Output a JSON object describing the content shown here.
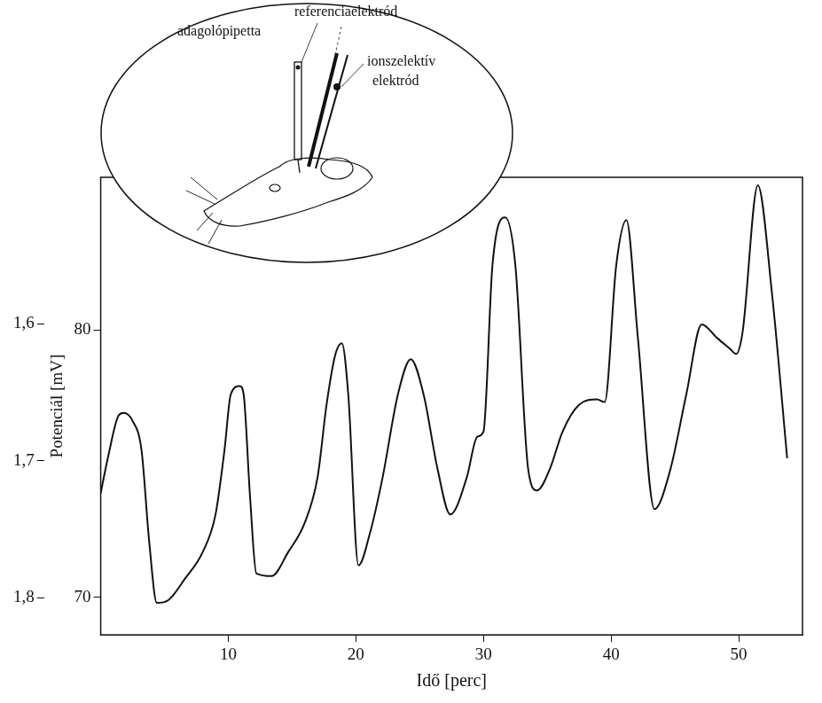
{
  "chart_data": {
    "type": "line",
    "x_label": "Idő [perc]",
    "y_label": "Potenciál [mV]",
    "color": "#111111",
    "grid": false,
    "x": [
      0,
      0.6,
      1.4,
      1.8,
      2.5,
      3.2,
      3.8,
      4.4,
      5.3,
      6.6,
      8.0,
      9.0,
      9.7,
      10.2,
      10.9,
      11.2,
      11.7,
      12.2,
      13.4,
      14.7,
      16.0,
      17.0,
      17.7,
      18.4,
      18.9,
      19.4,
      20.2,
      21.1,
      22.1,
      23.3,
      24.3,
      25.3,
      26.4,
      27.4,
      28.7,
      29.5,
      30.0,
      30.7,
      31.7,
      32.5,
      33.5,
      34.2,
      35.2,
      36.2,
      37.5,
      38.9,
      39.5,
      40.4,
      41.2,
      42.1,
      43.4,
      44.6,
      45.9,
      47.1,
      48.3,
      49.3,
      49.8,
      50.3,
      51.5,
      52.6,
      53.8
    ],
    "values": [
      73.9,
      75.3,
      76.8,
      76.9,
      76.6,
      75.5,
      72.1,
      69.8,
      69.9,
      70.7,
      71.7,
      73.1,
      75.5,
      77.6,
      77.9,
      77.6,
      73.8,
      70.9,
      70.8,
      71.7,
      72.8,
      74.5,
      77.2,
      79.1,
      79.5,
      77.6,
      71.2,
      72.4,
      74.5,
      77.6,
      78.9,
      77.6,
      74.8,
      73.1,
      74.5,
      76.0,
      76.2,
      82.4,
      84.2,
      82.4,
      74.8,
      74.0,
      74.8,
      76.2,
      77.2,
      77.4,
      77.3,
      82.4,
      84.1,
      79.7,
      73.3,
      74.7,
      77.6,
      80.2,
      79.7,
      79.3,
      79.1,
      79.9,
      85.4,
      81.4,
      75.2
    ],
    "xlim": [
      0,
      55
    ],
    "xticks": [
      10,
      20,
      30,
      40,
      50
    ],
    "ylim": [
      68.6,
      85.7
    ],
    "yticks": [
      70,
      80
    ],
    "y2lim": [
      1.827,
      1.493
    ],
    "y2ticks": [
      {
        "value": 1.6,
        "label": "1,6"
      },
      {
        "value": 1.7,
        "label": "1,7"
      },
      {
        "value": 1.8,
        "label": "1,8"
      }
    ],
    "annotations": [
      "referenciaelektród",
      "adagolópipetta",
      "ionszelektív elektród"
    ]
  }
}
